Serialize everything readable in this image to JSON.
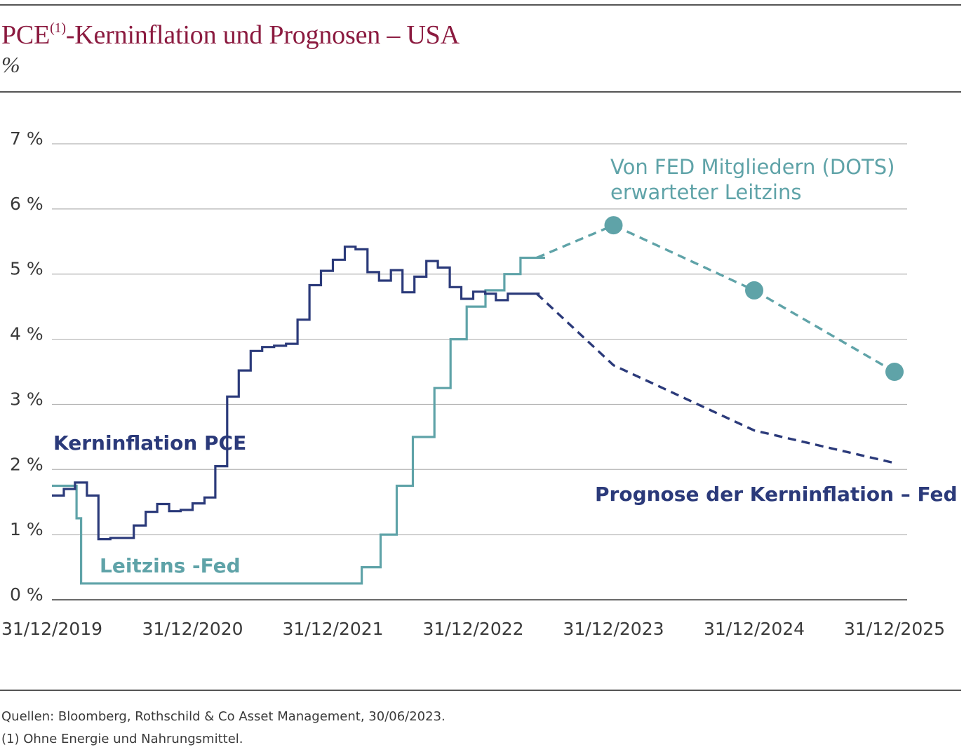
{
  "title": {
    "main_prefix": "PCE",
    "superscript": "(1)",
    "main_suffix": "-Kerninflation und Prognosen – USA",
    "unit": "%"
  },
  "footer": {
    "source": "Quellen: Bloomberg, Rothschild & Co Asset Management, 30/06/2023.",
    "note": "(1) Ohne Energie und Nahrungsmittel."
  },
  "colors": {
    "title": "#8b1a3f",
    "core_pce": "#2b3a7a",
    "fed_rate": "#5fa3a8",
    "grid": "#b4b4b4",
    "axis": "#6a6a6a",
    "rule": "#555555"
  },
  "chart_data": {
    "type": "line",
    "title": "PCE(1)-Kerninflation und Prognosen – USA",
    "ylabel": "%",
    "ylim": [
      0,
      7
    ],
    "xlim": [
      "2019-12-31",
      "2025-12-31"
    ],
    "grid": true,
    "x_ticks": [
      "31/12/2019",
      "31/12/2020",
      "31/12/2021",
      "31/12/2022",
      "31/12/2023",
      "31/12/2024",
      "31/12/2025"
    ],
    "y_ticks": [
      "0 %",
      "1 %",
      "2 %",
      "3 %",
      "4 %",
      "5 %",
      "6 %",
      "7 %"
    ],
    "series": [
      {
        "name": "Kerninflation PCE",
        "style": "step",
        "x": [
          "2019-12-31",
          "2020-01-31",
          "2020-02-29",
          "2020-03-31",
          "2020-04-30",
          "2020-05-31",
          "2020-06-30",
          "2020-07-31",
          "2020-08-31",
          "2020-09-30",
          "2020-10-31",
          "2020-11-30",
          "2020-12-31",
          "2021-01-31",
          "2021-02-28",
          "2021-03-31",
          "2021-04-30",
          "2021-05-31",
          "2021-06-30",
          "2021-07-31",
          "2021-08-31",
          "2021-09-30",
          "2021-10-31",
          "2021-11-30",
          "2021-12-31",
          "2022-01-31",
          "2022-02-28",
          "2022-03-31",
          "2022-04-30",
          "2022-05-31",
          "2022-06-30",
          "2022-07-31",
          "2022-08-31",
          "2022-09-30",
          "2022-10-31",
          "2022-11-30",
          "2022-12-31",
          "2023-01-31",
          "2023-02-28",
          "2023-03-31",
          "2023-04-30",
          "2023-05-31"
        ],
        "values": [
          1.6,
          1.7,
          1.8,
          1.6,
          0.93,
          0.95,
          0.95,
          1.14,
          1.35,
          1.47,
          1.36,
          1.38,
          1.48,
          1.57,
          2.05,
          3.12,
          3.52,
          3.82,
          3.88,
          3.9,
          3.93,
          4.3,
          4.83,
          5.05,
          5.22,
          5.42,
          5.38,
          5.03,
          4.9,
          5.06,
          4.72,
          4.96,
          5.2,
          5.1,
          4.8,
          4.62,
          4.73,
          4.7,
          4.6,
          4.7,
          4.7,
          4.7
        ]
      },
      {
        "name": "Leitzins -Fed",
        "style": "step",
        "x": [
          "2019-12-31",
          "2020-02-29",
          "2020-03-04",
          "2020-03-16",
          "2022-03-16",
          "2022-05-04",
          "2022-06-15",
          "2022-07-27",
          "2022-09-21",
          "2022-11-02",
          "2022-12-14",
          "2023-02-01",
          "2023-03-22",
          "2023-05-03",
          "2023-06-14"
        ],
        "values": [
          1.75,
          1.75,
          1.25,
          0.25,
          0.5,
          1.0,
          1.75,
          2.5,
          3.25,
          4.0,
          4.5,
          4.75,
          5.0,
          5.25,
          5.25
        ]
      },
      {
        "name": "Prognose der Kerninflation – Fed",
        "style": "dashed",
        "x": [
          "2023-06-14",
          "2023-12-31",
          "2024-12-31",
          "2025-12-31"
        ],
        "values": [
          4.7,
          3.6,
          2.6,
          2.1
        ]
      },
      {
        "name": "Von FED Mitgliedern (DOTS) erwarteter Leitzins",
        "style": "dashed-markers",
        "x": [
          "2023-06-14",
          "2023-12-31",
          "2024-12-31",
          "2025-12-31"
        ],
        "values": [
          5.25,
          5.75,
          4.75,
          3.5
        ],
        "markers": [
          "2023-12-31",
          "2024-12-31",
          "2025-12-31"
        ]
      }
    ],
    "annotations": {
      "fed_dots_line1": "Von FED Mitgliedern (DOTS)",
      "fed_dots_line2": "erwarteter Leitzins",
      "core_pce": "Kerninflation PCE",
      "fed_forecast": "Prognose der Kerninflation – Fed",
      "fed_rate": "Leitzins -Fed"
    }
  }
}
